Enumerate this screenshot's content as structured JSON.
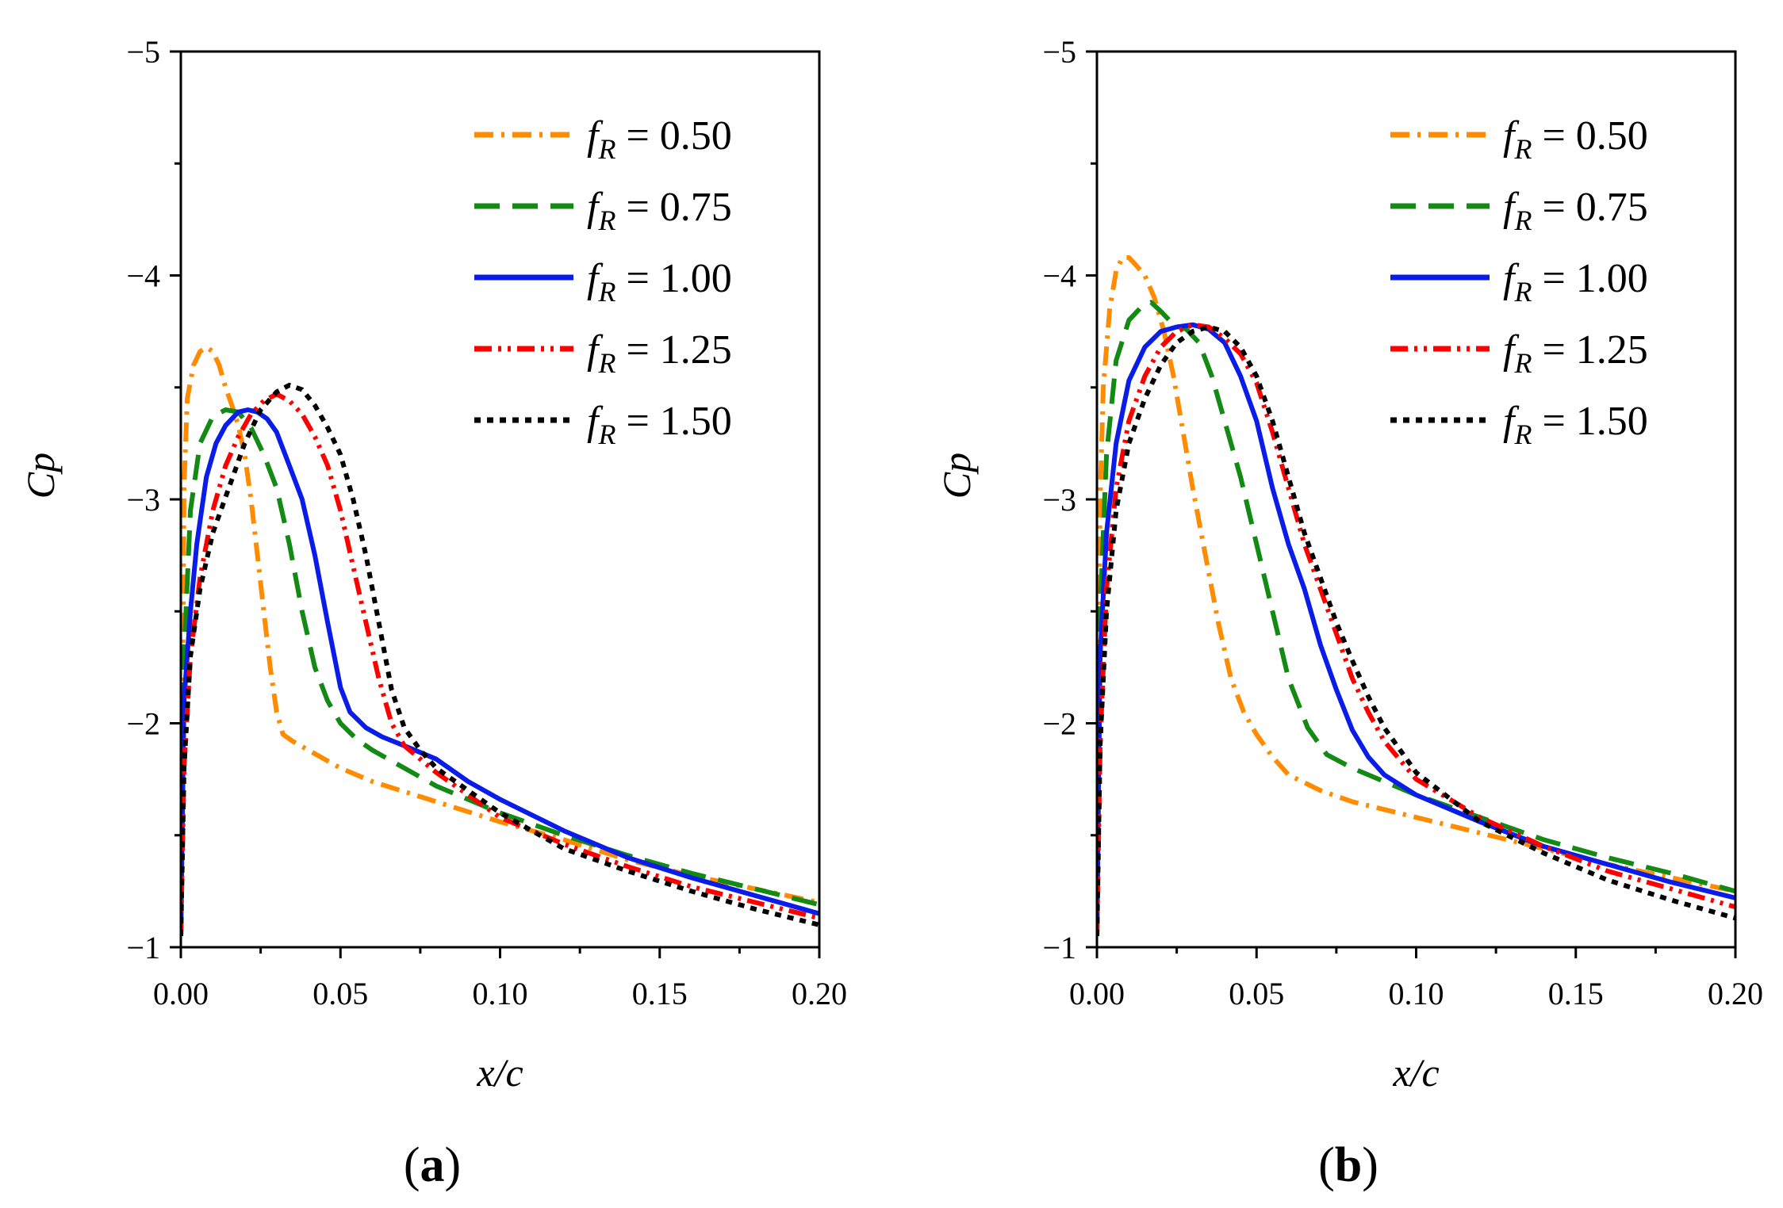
{
  "figure": {
    "panel_labels": [
      "(a)",
      "(b)"
    ]
  },
  "chart_data": [
    {
      "type": "line",
      "panel": "(a)",
      "xlabel": "x/c",
      "ylabel": "Cp",
      "xlim": [
        0,
        0.2
      ],
      "ylim": [
        -1,
        -5
      ],
      "y_axis_inverted": true,
      "xticks": [
        "0.00",
        "0.05",
        "0.10",
        "0.15",
        "0.20"
      ],
      "yticks": [
        "−1",
        "−2",
        "−3",
        "−4",
        "−5"
      ],
      "legend_placement": "top-right",
      "series": [
        {
          "name": "fR = 0.50",
          "label_var": "f",
          "label_sub": "R",
          "label_value": " = 0.50",
          "color": "#ff8c00",
          "dash": "dashdot",
          "x": [
            0,
            0.001,
            0.002,
            0.004,
            0.006,
            0.008,
            0.01,
            0.012,
            0.014,
            0.016,
            0.018,
            0.02,
            0.022,
            0.024,
            0.026,
            0.028,
            0.03,
            0.032,
            0.035,
            0.04,
            0.045,
            0.05,
            0.06,
            0.08,
            0.1,
            0.12,
            0.14,
            0.16,
            0.18,
            0.2
          ],
          "y": [
            -1.05,
            -3.05,
            -3.45,
            -3.6,
            -3.66,
            -3.68,
            -3.66,
            -3.6,
            -3.5,
            -3.42,
            -3.33,
            -3.2,
            -3.0,
            -2.75,
            -2.5,
            -2.25,
            -2.05,
            -1.95,
            -1.92,
            -1.88,
            -1.84,
            -1.8,
            -1.74,
            -1.65,
            -1.56,
            -1.48,
            -1.39,
            -1.32,
            -1.26,
            -1.2
          ]
        },
        {
          "name": "fR = 0.75",
          "label_var": "f",
          "label_sub": "R",
          "label_value": " = 0.75",
          "color": "#138a13",
          "dash": "dash",
          "x": [
            0,
            0.001,
            0.003,
            0.006,
            0.01,
            0.014,
            0.018,
            0.022,
            0.026,
            0.03,
            0.034,
            0.038,
            0.042,
            0.046,
            0.05,
            0.055,
            0.06,
            0.07,
            0.08,
            0.1,
            0.12,
            0.14,
            0.16,
            0.18,
            0.2
          ],
          "y": [
            -1.05,
            -2.3,
            -2.95,
            -3.25,
            -3.37,
            -3.4,
            -3.39,
            -3.32,
            -3.2,
            -3.05,
            -2.8,
            -2.5,
            -2.25,
            -2.1,
            -2.0,
            -1.93,
            -1.88,
            -1.8,
            -1.72,
            -1.6,
            -1.5,
            -1.41,
            -1.33,
            -1.26,
            -1.19
          ]
        },
        {
          "name": "fR = 1.00",
          "label_var": "f",
          "label_sub": "R",
          "label_value": " = 1.00",
          "color": "#0a1de8",
          "dash": "solid",
          "x": [
            0,
            0.001,
            0.003,
            0.005,
            0.008,
            0.011,
            0.014,
            0.018,
            0.021,
            0.024,
            0.027,
            0.03,
            0.034,
            0.038,
            0.042,
            0.046,
            0.05,
            0.053,
            0.058,
            0.063,
            0.07,
            0.08,
            0.09,
            0.1,
            0.12,
            0.14,
            0.16,
            0.18,
            0.2
          ],
          "y": [
            -1.05,
            -2.1,
            -2.5,
            -2.8,
            -3.1,
            -3.25,
            -3.33,
            -3.39,
            -3.4,
            -3.39,
            -3.36,
            -3.3,
            -3.15,
            -3.0,
            -2.75,
            -2.45,
            -2.16,
            -2.05,
            -1.98,
            -1.94,
            -1.9,
            -1.84,
            -1.74,
            -1.66,
            -1.52,
            -1.4,
            -1.31,
            -1.23,
            -1.15
          ]
        },
        {
          "name": "fR = 1.25",
          "label_var": "f",
          "label_sub": "R",
          "label_value": " = 1.25",
          "color": "#ff0000",
          "dash": "dashdotdot",
          "x": [
            0,
            0.001,
            0.003,
            0.006,
            0.01,
            0.014,
            0.018,
            0.022,
            0.026,
            0.03,
            0.034,
            0.038,
            0.042,
            0.046,
            0.05,
            0.054,
            0.058,
            0.062,
            0.066,
            0.07,
            0.08,
            0.1,
            0.12,
            0.14,
            0.16,
            0.18,
            0.2
          ],
          "y": [
            -1.05,
            -1.8,
            -2.3,
            -2.65,
            -2.95,
            -3.15,
            -3.28,
            -3.38,
            -3.44,
            -3.47,
            -3.44,
            -3.38,
            -3.28,
            -3.15,
            -2.95,
            -2.7,
            -2.45,
            -2.2,
            -2.0,
            -1.9,
            -1.78,
            -1.58,
            -1.46,
            -1.36,
            -1.27,
            -1.2,
            -1.13
          ]
        },
        {
          "name": "fR = 1.50",
          "label_var": "f",
          "label_sub": "R",
          "label_value": " = 1.50",
          "color": "#000000",
          "dash": "dot",
          "x": [
            0,
            0.001,
            0.003,
            0.006,
            0.01,
            0.015,
            0.02,
            0.025,
            0.03,
            0.034,
            0.038,
            0.042,
            0.046,
            0.05,
            0.054,
            0.058,
            0.062,
            0.066,
            0.07,
            0.075,
            0.08,
            0.1,
            0.12,
            0.14,
            0.16,
            0.18,
            0.2
          ],
          "y": [
            -1.05,
            -1.8,
            -2.3,
            -2.6,
            -2.85,
            -3.05,
            -3.25,
            -3.4,
            -3.48,
            -3.51,
            -3.49,
            -3.42,
            -3.32,
            -3.2,
            -3.0,
            -2.75,
            -2.45,
            -2.15,
            -1.98,
            -1.88,
            -1.8,
            -1.6,
            -1.44,
            -1.34,
            -1.25,
            -1.17,
            -1.1
          ]
        }
      ]
    },
    {
      "type": "line",
      "panel": "(b)",
      "xlabel": "x/c",
      "ylabel": "Cp",
      "xlim": [
        0,
        0.2
      ],
      "ylim": [
        -1,
        -5
      ],
      "y_axis_inverted": true,
      "xticks": [
        "0.00",
        "0.05",
        "0.10",
        "0.15",
        "0.20"
      ],
      "yticks": [
        "−1",
        "−2",
        "−3",
        "−4",
        "−5"
      ],
      "legend_placement": "top-right",
      "series": [
        {
          "name": "fR = 0.50",
          "label_var": "f",
          "label_sub": "R",
          "label_value": " = 0.50",
          "color": "#ff8c00",
          "dash": "dashdot",
          "x": [
            0,
            0.001,
            0.002,
            0.004,
            0.006,
            0.008,
            0.01,
            0.012,
            0.015,
            0.018,
            0.021,
            0.024,
            0.027,
            0.03,
            0.034,
            0.038,
            0.042,
            0.046,
            0.05,
            0.055,
            0.06,
            0.07,
            0.08,
            0.1,
            0.12,
            0.14,
            0.16,
            0.18,
            0.2
          ],
          "y": [
            -1.05,
            -3.0,
            -3.5,
            -3.85,
            -4.02,
            -4.08,
            -4.08,
            -4.05,
            -4.0,
            -3.9,
            -3.75,
            -3.55,
            -3.3,
            -3.05,
            -2.75,
            -2.45,
            -2.2,
            -2.05,
            -1.95,
            -1.85,
            -1.77,
            -1.7,
            -1.65,
            -1.58,
            -1.51,
            -1.44,
            -1.37,
            -1.31,
            -1.25
          ]
        },
        {
          "name": "fR = 0.75",
          "label_var": "f",
          "label_sub": "R",
          "label_value": " = 0.75",
          "color": "#138a13",
          "dash": "dash",
          "x": [
            0,
            0.001,
            0.003,
            0.006,
            0.01,
            0.014,
            0.017,
            0.02,
            0.024,
            0.028,
            0.032,
            0.036,
            0.04,
            0.045,
            0.05,
            0.055,
            0.06,
            0.066,
            0.072,
            0.08,
            0.09,
            0.1,
            0.12,
            0.14,
            0.16,
            0.18,
            0.2
          ],
          "y": [
            -1.05,
            -2.5,
            -3.2,
            -3.62,
            -3.8,
            -3.86,
            -3.88,
            -3.84,
            -3.78,
            -3.76,
            -3.7,
            -3.55,
            -3.35,
            -3.1,
            -2.8,
            -2.5,
            -2.2,
            -1.98,
            -1.86,
            -1.8,
            -1.74,
            -1.68,
            -1.58,
            -1.48,
            -1.4,
            -1.33,
            -1.25
          ]
        },
        {
          "name": "fR = 1.00",
          "label_var": "f",
          "label_sub": "R",
          "label_value": " = 1.00",
          "color": "#0a1de8",
          "dash": "solid",
          "x": [
            0,
            0.001,
            0.003,
            0.006,
            0.01,
            0.015,
            0.02,
            0.025,
            0.03,
            0.035,
            0.04,
            0.045,
            0.05,
            0.055,
            0.06,
            0.065,
            0.07,
            0.075,
            0.08,
            0.085,
            0.09,
            0.1,
            0.12,
            0.14,
            0.16,
            0.18,
            0.2
          ],
          "y": [
            -1.05,
            -2.3,
            -2.85,
            -3.25,
            -3.53,
            -3.68,
            -3.75,
            -3.77,
            -3.78,
            -3.76,
            -3.7,
            -3.55,
            -3.35,
            -3.05,
            -2.8,
            -2.6,
            -2.35,
            -2.15,
            -1.97,
            -1.85,
            -1.77,
            -1.68,
            -1.56,
            -1.45,
            -1.37,
            -1.29,
            -1.22
          ]
        },
        {
          "name": "fR = 1.25",
          "label_var": "f",
          "label_sub": "R",
          "label_value": " = 1.25",
          "color": "#ff0000",
          "dash": "dashdotdot",
          "x": [
            0,
            0.001,
            0.003,
            0.006,
            0.01,
            0.015,
            0.02,
            0.025,
            0.03,
            0.035,
            0.04,
            0.045,
            0.05,
            0.055,
            0.06,
            0.065,
            0.07,
            0.075,
            0.08,
            0.085,
            0.09,
            0.1,
            0.12,
            0.14,
            0.16,
            0.18,
            0.2
          ],
          "y": [
            -1.05,
            -1.9,
            -2.6,
            -3.05,
            -3.35,
            -3.55,
            -3.68,
            -3.75,
            -3.78,
            -3.77,
            -3.72,
            -3.65,
            -3.52,
            -3.3,
            -3.05,
            -2.8,
            -2.6,
            -2.4,
            -2.2,
            -2.05,
            -1.92,
            -1.75,
            -1.58,
            -1.45,
            -1.34,
            -1.26,
            -1.18
          ]
        },
        {
          "name": "fR = 1.50",
          "label_var": "f",
          "label_sub": "R",
          "label_value": " = 1.50",
          "color": "#000000",
          "dash": "dot",
          "x": [
            0,
            0.001,
            0.003,
            0.006,
            0.01,
            0.015,
            0.02,
            0.025,
            0.03,
            0.035,
            0.04,
            0.045,
            0.05,
            0.055,
            0.06,
            0.065,
            0.07,
            0.075,
            0.08,
            0.085,
            0.09,
            0.1,
            0.12,
            0.14,
            0.16,
            0.18,
            0.2
          ],
          "y": [
            -1.05,
            -1.9,
            -2.5,
            -2.95,
            -3.25,
            -3.45,
            -3.6,
            -3.7,
            -3.75,
            -3.77,
            -3.75,
            -3.68,
            -3.55,
            -3.35,
            -3.1,
            -2.85,
            -2.65,
            -2.45,
            -2.28,
            -2.12,
            -1.98,
            -1.78,
            -1.56,
            -1.42,
            -1.3,
            -1.21,
            -1.13
          ]
        }
      ]
    }
  ]
}
